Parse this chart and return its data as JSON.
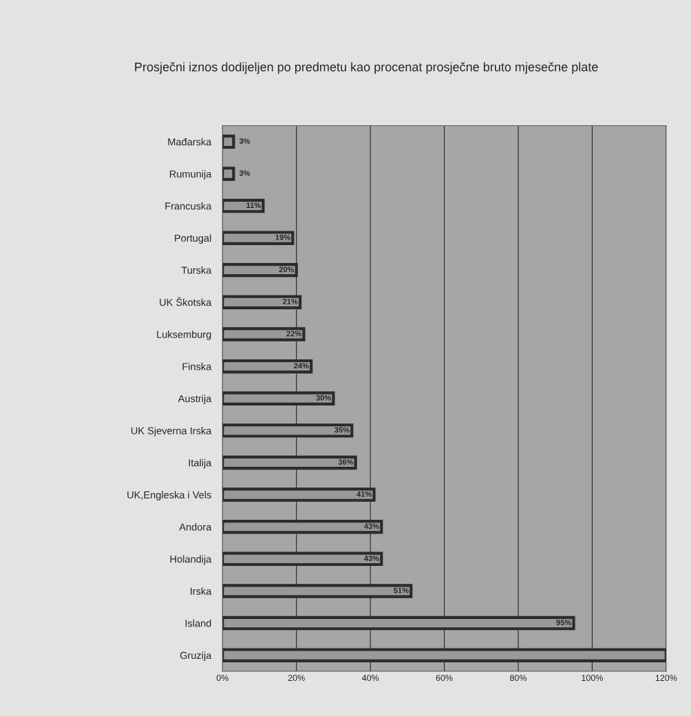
{
  "chart_data": {
    "type": "bar",
    "orientation": "horizontal",
    "title": "Prosječni iznos dodijeljen po predmetu kao procenat prosječne bruto mjesečne plate",
    "categories": [
      "Mađarska",
      "Rumunija",
      "Francuska",
      "Portugal",
      "Turska",
      "UK Škotska",
      "Luksemburg",
      "Finska",
      "Austrija",
      "UK Sjeverna Irska",
      "Italija",
      "UK,Engleska i Vels",
      "Andora",
      "Holandija",
      "Irska",
      "Island",
      "Gruzija"
    ],
    "values": [
      3,
      3,
      11,
      19,
      20,
      21,
      22,
      24,
      30,
      35,
      36,
      41,
      43,
      43,
      51,
      95,
      120
    ],
    "value_labels": [
      "3%",
      "3%",
      "11%",
      "19%",
      "20%",
      "21%",
      "22%",
      "24%",
      "30%",
      "35%",
      "36%",
      "41%",
      "43%",
      "43%",
      "51%",
      "95%",
      null
    ],
    "color": "#999999",
    "xlim": [
      0,
      120
    ],
    "xticks": [
      {
        "value": 0,
        "label": "0%"
      },
      {
        "value": 20,
        "label": "20%"
      },
      {
        "value": 40,
        "label": "40%"
      },
      {
        "value": 60,
        "label": "60%"
      },
      {
        "value": 80,
        "label": "80%"
      },
      {
        "value": 100,
        "label": "100%"
      },
      {
        "value": 120,
        "label": "120%"
      }
    ],
    "grid": "x",
    "legend": false
  }
}
